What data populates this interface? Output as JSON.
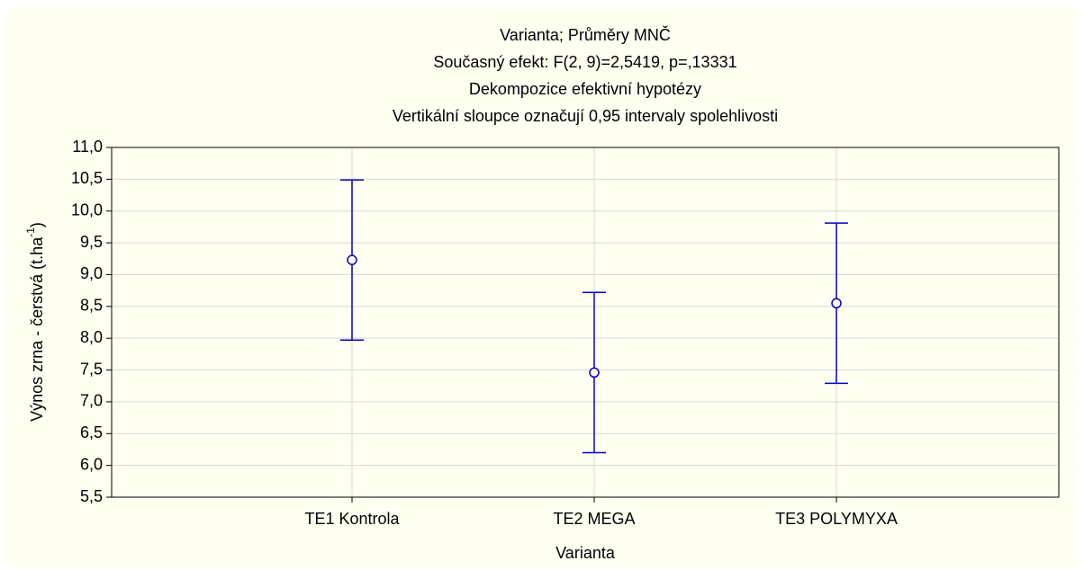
{
  "chart_data": {
    "type": "errorbar",
    "title": [
      "Varianta; Průměry MNČ",
      "Současný efekt: F(2, 9)=2,5419, p=,13331",
      "Dekompozice efektivní hypotézy",
      "Vertikální sloupce označují 0,95 intervaly spolehlivosti"
    ],
    "x_label": "Varianta",
    "y_label": {
      "text": "Výnos zrna - čerstvá (t.ha",
      "sup": "-1",
      "end": ")"
    },
    "categories": [
      "TE1 Kontrola",
      "TE2 MEGA",
      "TE3 POLYMYXA"
    ],
    "values": [
      9.23,
      7.46,
      8.55
    ],
    "errors": [
      1.26,
      1.26,
      1.26
    ],
    "color": "#0000cc",
    "ylim": [
      5.5,
      11.0
    ],
    "yticks": [
      {
        "value": 5.5,
        "label": "5,5"
      },
      {
        "value": 6.0,
        "label": "6,0"
      },
      {
        "value": 6.5,
        "label": "6,5"
      },
      {
        "value": 7.0,
        "label": "7,0"
      },
      {
        "value": 7.5,
        "label": "7,5"
      },
      {
        "value": 8.0,
        "label": "8,0"
      },
      {
        "value": 8.5,
        "label": "8,5"
      },
      {
        "value": 9.0,
        "label": "9,0"
      },
      {
        "value": 9.5,
        "label": "9,5"
      },
      {
        "value": 10.0,
        "label": "10,0"
      },
      {
        "value": 10.5,
        "label": "10,5"
      },
      {
        "value": 11.0,
        "label": "11,0"
      }
    ],
    "grid": true
  }
}
